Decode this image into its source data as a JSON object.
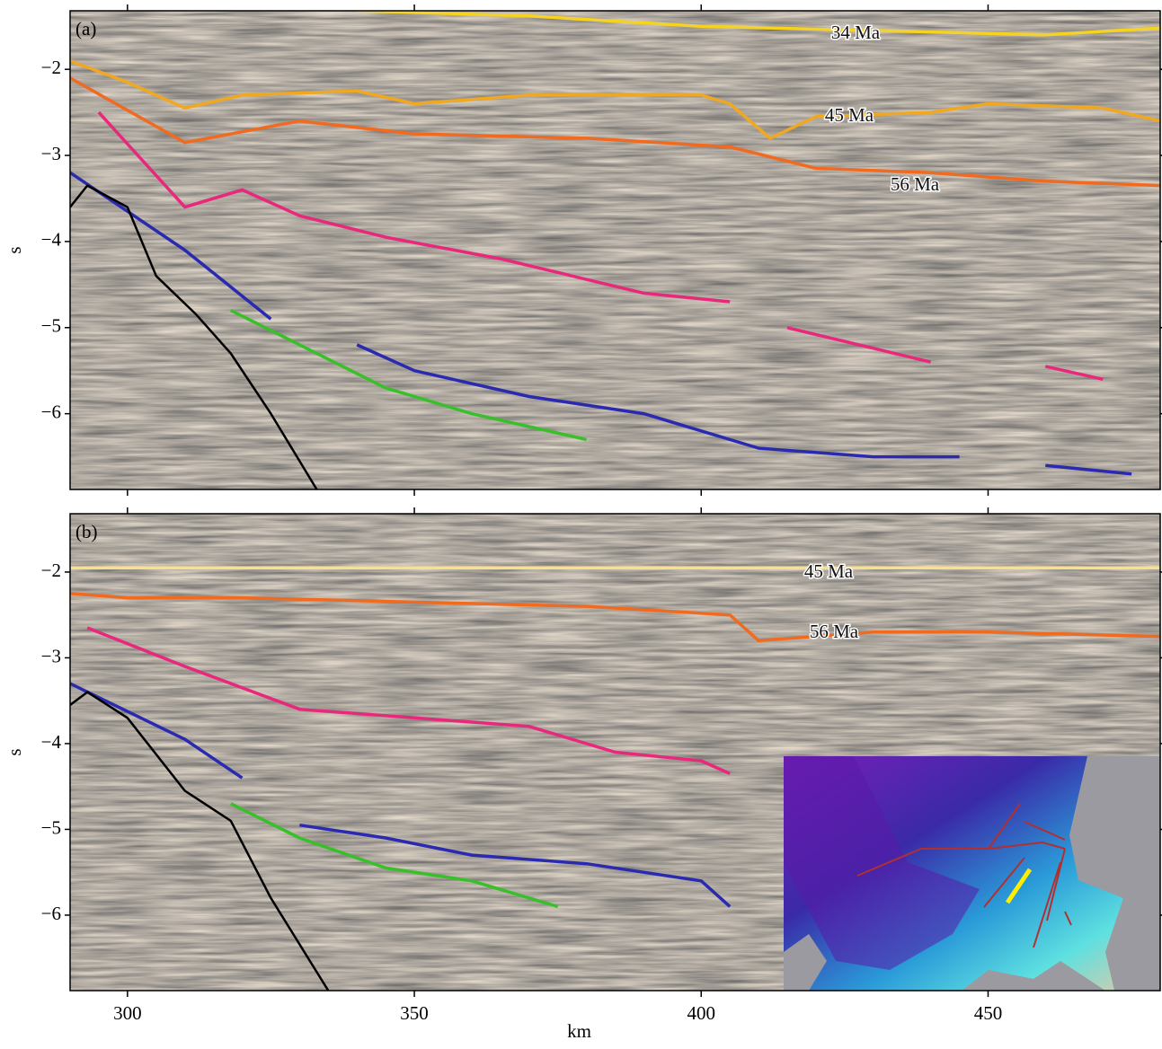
{
  "chart_data": [
    {
      "type": "line",
      "panel_label": "(a)",
      "y_label": "s",
      "xlim": [
        290,
        480
      ],
      "ylim": [
        -6.88,
        -1.32
      ],
      "xticks": [
        300,
        350,
        400,
        450
      ],
      "yticks": [
        {
          "value": -2,
          "label": "−2"
        },
        {
          "value": -3,
          "label": "−3"
        },
        {
          "value": -4,
          "label": "−4"
        },
        {
          "value": -5,
          "label": "−5"
        },
        {
          "value": -6,
          "label": "−6"
        }
      ],
      "annotations": [
        "34 Ma",
        "45 Ma",
        "56 Ma"
      ],
      "series": [
        {
          "color": "#f5d320",
          "x": [
            340,
            370,
            400,
            430,
            460,
            480
          ],
          "values": [
            -1.32,
            -1.38,
            -1.5,
            -1.55,
            -1.6,
            -1.52
          ]
        },
        {
          "color": "#f0a820",
          "x": [
            290,
            300,
            310,
            320,
            340,
            350,
            370,
            390,
            400,
            405,
            412,
            420,
            440,
            450,
            470,
            480
          ],
          "values": [
            -1.9,
            -2.15,
            -2.45,
            -2.3,
            -2.25,
            -2.4,
            -2.3,
            -2.3,
            -2.3,
            -2.4,
            -2.8,
            -2.55,
            -2.5,
            -2.4,
            -2.45,
            -2.6
          ]
        },
        {
          "color": "#f06a20",
          "x": [
            290,
            310,
            330,
            350,
            380,
            405,
            420,
            440,
            460,
            480
          ],
          "values": [
            -2.1,
            -2.85,
            -2.6,
            -2.75,
            -2.8,
            -2.9,
            -3.15,
            -3.2,
            -3.3,
            -3.35
          ]
        },
        {
          "color": "#e8287a",
          "x": [
            295,
            310,
            320,
            330,
            345,
            365,
            390,
            405,
            410,
            415,
            440,
            450,
            460,
            470
          ],
          "values": [
            -2.5,
            -3.6,
            -3.4,
            -3.7,
            -3.95,
            -4.2,
            -4.6,
            -4.7,
            null,
            -5.0,
            -5.4,
            null,
            -5.45,
            -5.6
          ]
        },
        {
          "color": "#2a2ab0",
          "x": [
            290,
            310,
            325,
            330,
            340,
            350,
            370,
            390,
            410,
            430,
            445,
            450,
            460,
            475
          ],
          "values": [
            -3.2,
            -4.1,
            -4.9,
            null,
            -5.2,
            -5.5,
            -5.8,
            -6.0,
            -6.4,
            -6.5,
            -6.5,
            null,
            -6.6,
            -6.7
          ]
        },
        {
          "color": "#38c02a",
          "x": [
            318,
            330,
            345,
            360,
            380
          ],
          "values": [
            -4.8,
            -5.2,
            -5.7,
            -6.0,
            -6.3
          ]
        },
        {
          "color": "#000000",
          "x": [
            290,
            293,
            300,
            305,
            312,
            318,
            325,
            333
          ],
          "values": [
            -3.6,
            -3.35,
            -3.6,
            -4.4,
            -4.85,
            -5.3,
            -6.0,
            -6.88
          ]
        }
      ]
    },
    {
      "type": "line",
      "panel_label": "(b)",
      "y_label": "s",
      "x_label": "km",
      "xlim": [
        290,
        480
      ],
      "ylim": [
        -6.88,
        -1.32
      ],
      "xticks": [
        300,
        350,
        400,
        450
      ],
      "yticks": [
        {
          "value": -2,
          "label": "−2"
        },
        {
          "value": -3,
          "label": "−3"
        },
        {
          "value": -4,
          "label": "−4"
        },
        {
          "value": -5,
          "label": "−5"
        },
        {
          "value": -6,
          "label": "−6"
        }
      ],
      "annotations": [
        "45 Ma",
        "56 Ma"
      ],
      "series": [
        {
          "color": "#f8e090",
          "x": [
            290,
            480
          ],
          "values": [
            -1.95,
            -1.95
          ]
        },
        {
          "color": "#f06a20",
          "x": [
            290,
            300,
            320,
            350,
            380,
            405,
            410,
            430,
            450,
            480
          ],
          "values": [
            -2.25,
            -2.3,
            -2.3,
            -2.35,
            -2.4,
            -2.5,
            -2.8,
            -2.7,
            -2.7,
            -2.75
          ]
        },
        {
          "color": "#e8287a",
          "x": [
            293,
            310,
            330,
            350,
            370,
            385,
            400,
            405
          ],
          "values": [
            -2.65,
            -3.1,
            -3.6,
            -3.7,
            -3.8,
            -4.1,
            -4.2,
            -4.35
          ]
        },
        {
          "color": "#2a2ab0",
          "x": [
            290,
            310,
            320,
            325,
            330,
            345,
            360,
            380,
            400,
            405
          ],
          "values": [
            -3.3,
            -3.95,
            -4.4,
            null,
            -4.95,
            -5.1,
            -5.3,
            -5.4,
            -5.6,
            -5.9
          ]
        },
        {
          "color": "#38c02a",
          "x": [
            318,
            330,
            345,
            360,
            375
          ],
          "values": [
            -4.7,
            -5.1,
            -5.45,
            -5.6,
            -5.9
          ]
        },
        {
          "color": "#000000",
          "x": [
            290,
            293,
            300,
            310,
            318,
            325,
            335
          ],
          "values": [
            -3.55,
            -3.4,
            -3.7,
            -4.55,
            -4.9,
            -5.8,
            -6.88
          ]
        }
      ]
    }
  ]
}
